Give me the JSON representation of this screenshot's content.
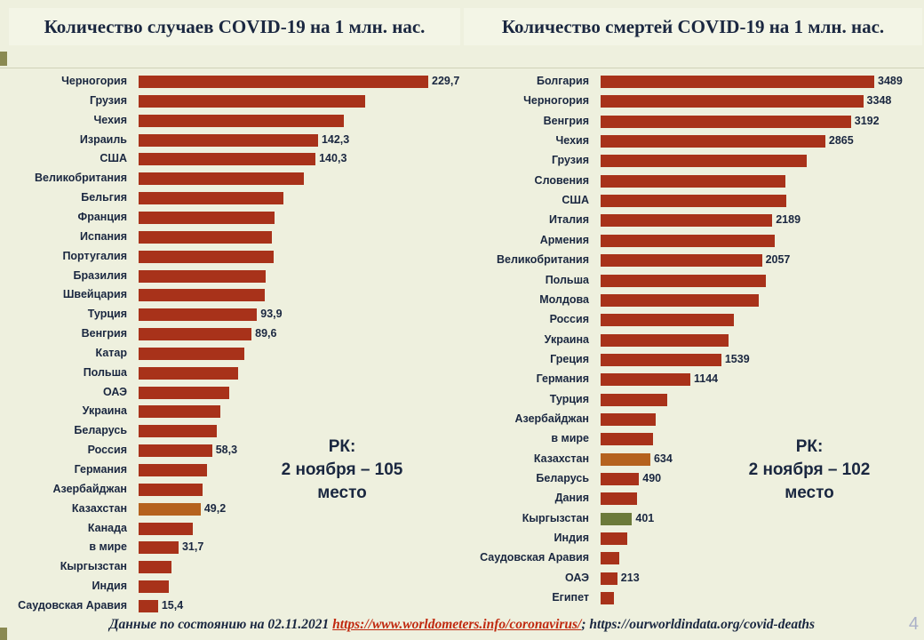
{
  "titles": {
    "left": "Количество случаев COVID-19 на 1 млн. нас.",
    "right": "Количество смертей COVID-19 на 1 млн. нас."
  },
  "rk": {
    "left": [
      "РК:",
      "2 ноября – 105",
      "место"
    ],
    "right": [
      "РК:",
      "2 ноября – 102",
      "место"
    ]
  },
  "footer": {
    "prefix": "Данные по состоянию на 02.11.2021 ",
    "link": "https://www.worldometers.info/coronavirus/",
    "sep": "; ",
    "suffix": "https://ourworldindata.org/covid-deaths"
  },
  "page_number": "4",
  "colors": {
    "bar": "#a8321a",
    "kazakhstan": "#b5621e",
    "kyrgyzstan": "#6b7a3a"
  },
  "chart_data": [
    {
      "type": "bar",
      "orientation": "horizontal",
      "title": "Количество случаев COVID-19 на 1 млн. нас.",
      "categories": [
        "Черногория",
        "Грузия",
        "Чехия",
        "Израиль",
        "США",
        "Великобритания",
        "Бельгия",
        "Франция",
        "Испания",
        "Португалия",
        "Бразилия",
        "Швейцария",
        "Турция",
        "Венгрия",
        "Катар",
        "Польша",
        "ОАЭ",
        "Украина",
        "Беларусь",
        "Россия",
        "Германия",
        "Азербайджан",
        "Казахстан",
        "Канада",
        "в мире",
        "Кыргызстан",
        "Индия",
        "Саудовская Аравия"
      ],
      "values": [
        229.7,
        180,
        163,
        142.3,
        140.3,
        131,
        115,
        108,
        106,
        107,
        101,
        100,
        93.9,
        89.6,
        84,
        79,
        72,
        65,
        62,
        58.3,
        54,
        51,
        49.2,
        43,
        31.7,
        26,
        24,
        15.4
      ],
      "labels": [
        "229,7",
        "",
        "",
        "142,3",
        "140,3",
        "",
        "",
        "",
        "",
        "",
        "",
        "",
        "93,9",
        "89,6",
        "",
        "",
        "",
        "",
        "",
        "58,3",
        "",
        "",
        "49,2",
        "",
        "31,7",
        "",
        "",
        "15,4"
      ],
      "highlight": {
        "Казахстан": "kazakhstan"
      },
      "xlim": [
        0,
        229.7
      ]
    },
    {
      "type": "bar",
      "orientation": "horizontal",
      "title": "Количество смертей COVID-19 на 1 млн. нас.",
      "categories": [
        "Болгария",
        "Черногория",
        "Венгрия",
        "Чехия",
        "Грузия",
        "Словения",
        "США",
        "Италия",
        "Армения",
        "Великобритания",
        "Польша",
        "Молдова",
        "Россия",
        "Украина",
        "Греция",
        "Германия",
        "Турция",
        "Азербайджан",
        "в мире",
        "Казахстан",
        "Беларусь",
        "Дания",
        "Кыргызстан",
        "Индия",
        "Саудовская Аравия",
        "ОАЭ",
        "Египет"
      ],
      "values": [
        3489,
        3348,
        3192,
        2865,
        2630,
        2360,
        2370,
        2189,
        2220,
        2057,
        2110,
        2020,
        1700,
        1630,
        1539,
        1144,
        850,
        700,
        670,
        634,
        490,
        470,
        401,
        340,
        240,
        213,
        170
      ],
      "labels": [
        "3489",
        "3348",
        "3192",
        "2865",
        "",
        "",
        "",
        "2189",
        "",
        "2057",
        "",
        "",
        "",
        "",
        "1539",
        "1144",
        "",
        "",
        "",
        "634",
        "490",
        "",
        "401",
        "",
        "",
        "213",
        ""
      ],
      "highlight": {
        "Казахстан": "kazakhstan",
        "Кыргызстан": "kyrgyzstan"
      },
      "xlim": [
        0,
        3489
      ]
    }
  ]
}
